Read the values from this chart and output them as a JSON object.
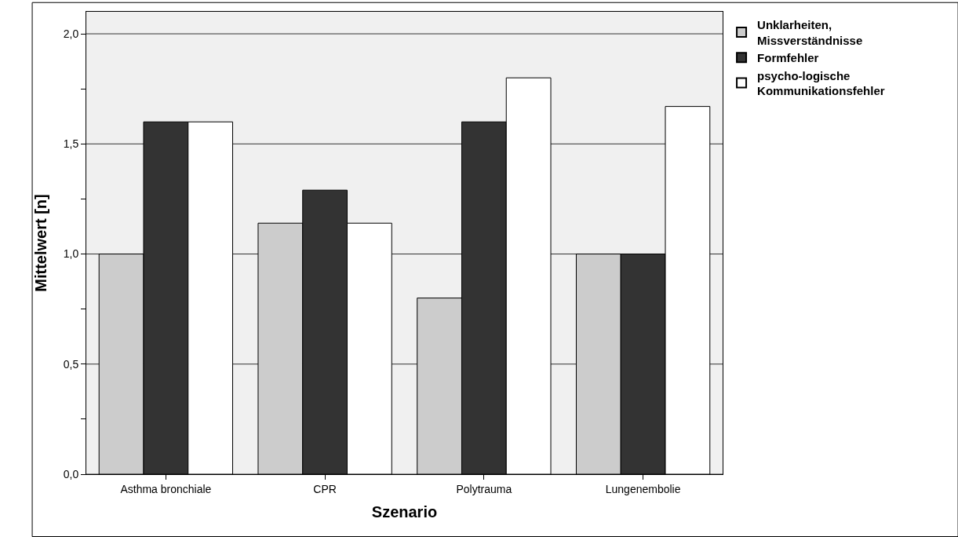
{
  "chart_data": {
    "type": "bar",
    "xlabel": "Szenario",
    "ylabel": "Mittelwert [n]",
    "categories": [
      "Asthma bronchiale",
      "CPR",
      "Polytrauma",
      "Lungenembolie"
    ],
    "series": [
      {
        "name": "Unklarheiten,\nMissverständnisse",
        "color": "#cccccc",
        "values": [
          1.0,
          1.14,
          0.8,
          1.0
        ]
      },
      {
        "name": "Formfehler",
        "color": "#333333",
        "values": [
          1.6,
          1.29,
          1.6,
          1.0
        ]
      },
      {
        "name": "psycho-logische\nKommunikationsfehler",
        "color": "#ffffff",
        "values": [
          1.6,
          1.14,
          1.8,
          1.67
        ]
      }
    ],
    "ylim": [
      0,
      2.1
    ],
    "yticks": [
      {
        "value": 0,
        "label": "0,0"
      },
      {
        "value": 0.25,
        "label": null
      },
      {
        "value": 0.5,
        "label": "0,5"
      },
      {
        "value": 0.75,
        "label": null
      },
      {
        "value": 1.0,
        "label": "1,0"
      },
      {
        "value": 1.25,
        "label": null
      },
      {
        "value": 1.5,
        "label": "1,5"
      },
      {
        "value": 1.75,
        "label": null
      },
      {
        "value": 2.0,
        "label": "2,0"
      }
    ],
    "grid": "y",
    "legend": "top right"
  }
}
